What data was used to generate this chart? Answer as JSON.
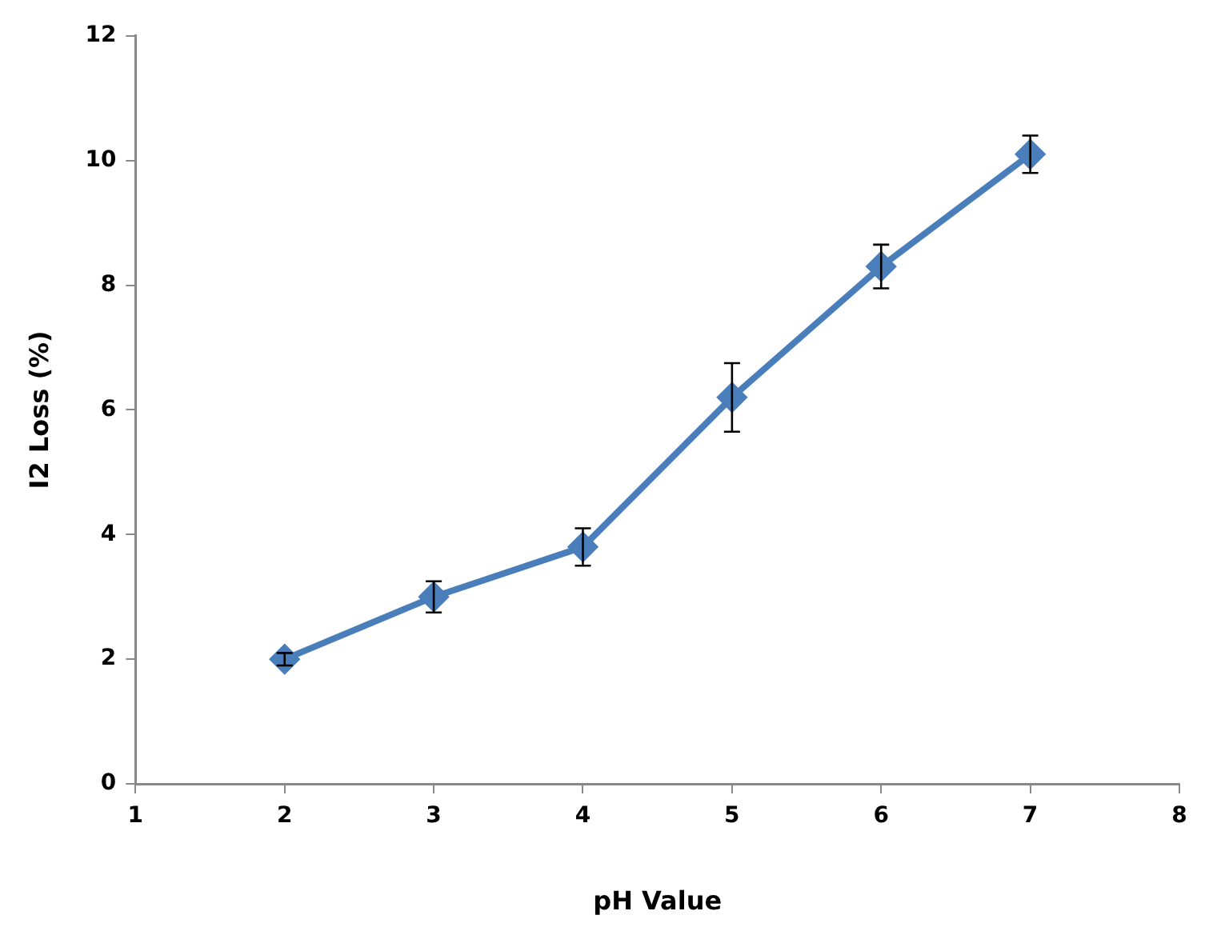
{
  "chart_data": {
    "type": "line",
    "xlabel": "pH Value",
    "ylabel": "I2 Loss (%)",
    "x": [
      2,
      3,
      4,
      5,
      6,
      7
    ],
    "series": [
      {
        "color": "#4a7ebb",
        "values": [
          2.0,
          3.0,
          3.8,
          6.2,
          8.3,
          10.1
        ],
        "errors": [
          0.1,
          0.25,
          0.3,
          0.55,
          0.35,
          0.3
        ]
      }
    ],
    "xlim": [
      1,
      8
    ],
    "xticks": [
      1,
      2,
      3,
      4,
      5,
      6,
      7,
      8
    ],
    "ylim": [
      0,
      12
    ],
    "yticks": [
      0,
      2,
      4,
      6,
      8,
      10,
      12
    ],
    "grid": false,
    "legend": false,
    "marker": "diamond",
    "line_style": "solid"
  }
}
